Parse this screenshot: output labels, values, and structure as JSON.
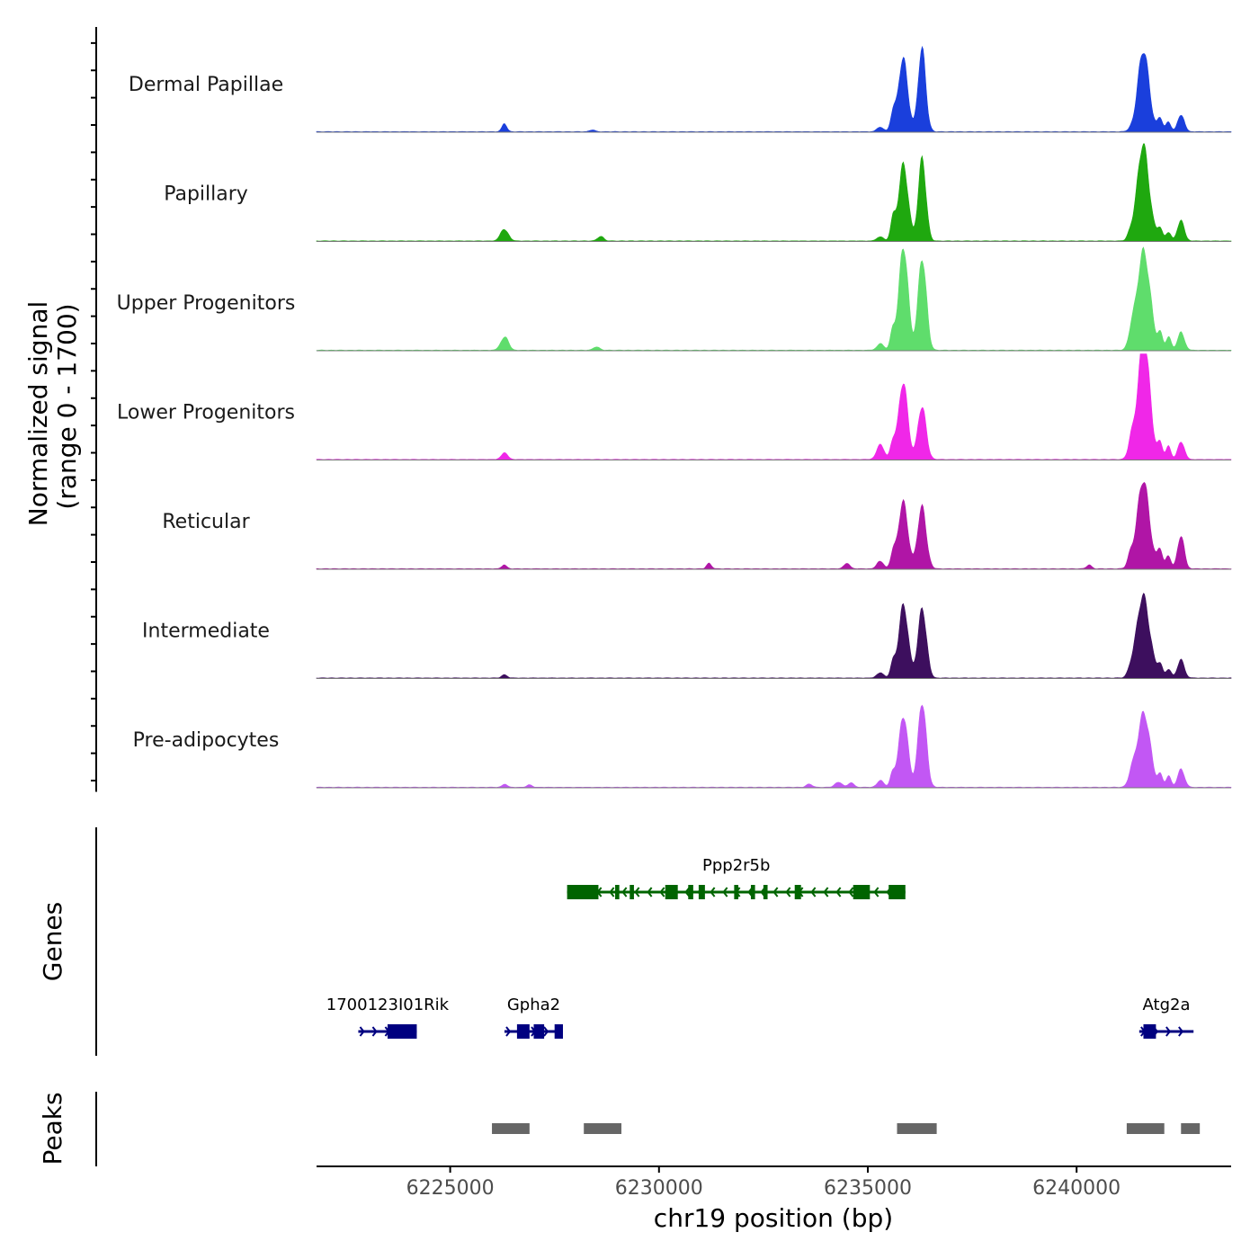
{
  "chart_data": {
    "type": "area",
    "title": "",
    "ylabel_line1": "Normalized signal",
    "ylabel_line2": "(range 0 - 1700)",
    "xlabel": "chr19 position (bp)",
    "xlim": [
      6221800,
      6243700
    ],
    "ylim": [
      0,
      1700
    ],
    "x_ticks": [
      6225000,
      6230000,
      6235000,
      6240000
    ],
    "x_tick_labels": [
      "6225000",
      "6230000",
      "6235000",
      "6240000"
    ],
    "series": [
      {
        "name": "Dermal Papillae",
        "color": "#1a3fdc",
        "peaks": [
          [
            6226300,
            120,
            60
          ],
          [
            6228400,
            30,
            60
          ],
          [
            6235300,
            70,
            80
          ],
          [
            6235600,
            300,
            60
          ],
          [
            6235850,
            1180,
            110
          ],
          [
            6236300,
            1340,
            90
          ],
          [
            6241600,
            1250,
            140
          ],
          [
            6242000,
            200,
            60
          ],
          [
            6242200,
            160,
            60
          ],
          [
            6242500,
            260,
            80
          ]
        ]
      },
      {
        "name": "Papillary",
        "color": "#1fa80f",
        "peaks": [
          [
            6226300,
            200,
            90
          ],
          [
            6228600,
            80,
            70
          ],
          [
            6235300,
            70,
            80
          ],
          [
            6235600,
            300,
            60
          ],
          [
            6235850,
            1270,
            110
          ],
          [
            6236300,
            1370,
            90
          ],
          [
            6241300,
            140,
            70
          ],
          [
            6241600,
            1550,
            140
          ],
          [
            6242000,
            200,
            60
          ],
          [
            6242200,
            150,
            60
          ],
          [
            6242500,
            330,
            80
          ]
        ]
      },
      {
        "name": "Upper Progenitors",
        "color": "#5fdd6c",
        "peaks": [
          [
            6226300,
            220,
            90
          ],
          [
            6228500,
            60,
            70
          ],
          [
            6235300,
            110,
            80
          ],
          [
            6235600,
            280,
            60
          ],
          [
            6235850,
            1630,
            110
          ],
          [
            6236300,
            1450,
            100
          ],
          [
            6241300,
            200,
            70
          ],
          [
            6241600,
            1650,
            150
          ],
          [
            6242000,
            280,
            60
          ],
          [
            6242200,
            210,
            60
          ],
          [
            6242500,
            300,
            80
          ]
        ]
      },
      {
        "name": "Lower Progenitors",
        "color": "#f027e8",
        "peaks": [
          [
            6226300,
            100,
            80
          ],
          [
            6235300,
            230,
            90
          ],
          [
            6235600,
            300,
            60
          ],
          [
            6235850,
            1200,
            110
          ],
          [
            6236300,
            820,
            100
          ],
          [
            6241300,
            160,
            70
          ],
          [
            6241600,
            1870,
            150
          ],
          [
            6242000,
            240,
            60
          ],
          [
            6242200,
            200,
            60
          ],
          [
            6242500,
            280,
            80
          ]
        ]
      },
      {
        "name": "Reticular",
        "color": "#b015a6",
        "peaks": [
          [
            6226300,
            60,
            60
          ],
          [
            6231200,
            80,
            60
          ],
          [
            6234500,
            90,
            70
          ],
          [
            6235300,
            120,
            80
          ],
          [
            6235600,
            240,
            60
          ],
          [
            6235850,
            1100,
            110
          ],
          [
            6236300,
            1020,
            100
          ],
          [
            6240300,
            60,
            60
          ],
          [
            6241300,
            180,
            70
          ],
          [
            6241600,
            1370,
            150
          ],
          [
            6242000,
            280,
            60
          ],
          [
            6242200,
            220,
            60
          ],
          [
            6242500,
            510,
            80
          ]
        ]
      },
      {
        "name": "Intermediate",
        "color": "#3d0f5e",
        "peaks": [
          [
            6226300,
            60,
            60
          ],
          [
            6235300,
            90,
            80
          ],
          [
            6235600,
            200,
            60
          ],
          [
            6235850,
            1200,
            110
          ],
          [
            6236300,
            1140,
            100
          ],
          [
            6241300,
            140,
            70
          ],
          [
            6241600,
            1350,
            150
          ],
          [
            6242000,
            220,
            60
          ],
          [
            6242200,
            150,
            60
          ],
          [
            6242500,
            300,
            80
          ]
        ]
      },
      {
        "name": "Pre-adipocytes",
        "color": "#c257f4",
        "peaks": [
          [
            6226300,
            50,
            60
          ],
          [
            6226900,
            40,
            60
          ],
          [
            6233600,
            50,
            70
          ],
          [
            6234300,
            90,
            80
          ],
          [
            6234600,
            70,
            70
          ],
          [
            6235300,
            110,
            80
          ],
          [
            6235600,
            220,
            60
          ],
          [
            6235850,
            1110,
            110
          ],
          [
            6236300,
            1320,
            100
          ],
          [
            6241300,
            140,
            70
          ],
          [
            6241600,
            1220,
            150
          ],
          [
            6242000,
            200,
            60
          ],
          [
            6242200,
            170,
            60
          ],
          [
            6242500,
            300,
            80
          ]
        ]
      }
    ],
    "genes": [
      {
        "name": "Ppp2r5b",
        "strand": "-",
        "color": "#006400",
        "row": 1,
        "start": 6227800,
        "end": 6235900,
        "exons": [
          [
            6227800,
            6228550
          ],
          [
            6228950,
            6229050
          ],
          [
            6229300,
            6229400
          ],
          [
            6230150,
            6230450
          ],
          [
            6230700,
            6230820
          ],
          [
            6230950,
            6231100
          ],
          [
            6231800,
            6231900
          ],
          [
            6232200,
            6232300
          ],
          [
            6232500,
            6232600
          ],
          [
            6233250,
            6233400
          ],
          [
            6234650,
            6235050
          ],
          [
            6235500,
            6235900
          ]
        ]
      },
      {
        "name": "1700123I01Rik",
        "strand": "+",
        "color": "#000080",
        "row": 2,
        "start": 6222800,
        "end": 6224200,
        "exons": [
          [
            6223500,
            6224200
          ]
        ]
      },
      {
        "name": "Gpha2",
        "strand": "+",
        "color": "#000080",
        "row": 2,
        "start": 6226300,
        "end": 6227700,
        "exons": [
          [
            6226600,
            6226900
          ],
          [
            6227000,
            6227250
          ],
          [
            6227500,
            6227700
          ]
        ]
      },
      {
        "name": "Atg2a",
        "strand": "+",
        "color": "#000080",
        "row": 2,
        "start": 6241500,
        "end": 6242800,
        "exons": [
          [
            6241600,
            6241900
          ]
        ]
      }
    ],
    "peaks_track_label": "Peaks",
    "genes_track_label": "Genes",
    "peak_regions": [
      [
        6226000,
        6226900
      ],
      [
        6228200,
        6229100
      ],
      [
        6235700,
        6236650
      ],
      [
        6241200,
        6242100
      ],
      [
        6242500,
        6242950
      ]
    ]
  }
}
